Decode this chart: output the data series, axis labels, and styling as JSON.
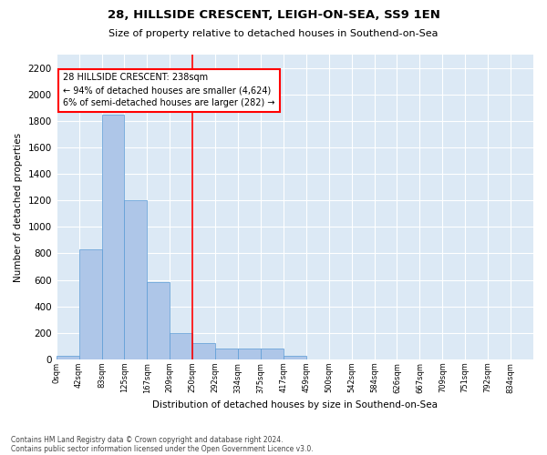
{
  "title": "28, HILLSIDE CRESCENT, LEIGH-ON-SEA, SS9 1EN",
  "subtitle": "Size of property relative to detached houses in Southend-on-Sea",
  "xlabel": "Distribution of detached houses by size in Southend-on-Sea",
  "ylabel": "Number of detached properties",
  "bin_labels": [
    "0sqm",
    "42sqm",
    "83sqm",
    "125sqm",
    "167sqm",
    "209sqm",
    "250sqm",
    "292sqm",
    "334sqm",
    "375sqm",
    "417sqm",
    "459sqm",
    "500sqm",
    "542sqm",
    "584sqm",
    "626sqm",
    "667sqm",
    "709sqm",
    "751sqm",
    "792sqm",
    "834sqm"
  ],
  "bar_values": [
    30,
    830,
    1850,
    1200,
    580,
    200,
    120,
    80,
    80,
    80,
    30,
    0,
    0,
    0,
    0,
    0,
    0,
    0,
    0,
    0,
    0
  ],
  "bar_color": "#aec6e8",
  "bar_edge_color": "#5a9bd5",
  "red_line_bin": 6,
  "annotation_text": "28 HILLSIDE CRESCENT: 238sqm\n← 94% of detached houses are smaller (4,624)\n6% of semi-detached houses are larger (282) →",
  "ylim": [
    0,
    2300
  ],
  "yticks": [
    0,
    200,
    400,
    600,
    800,
    1000,
    1200,
    1400,
    1600,
    1800,
    2000,
    2200
  ],
  "background_color": "#dce9f5",
  "footer_line1": "Contains HM Land Registry data © Crown copyright and database right 2024.",
  "footer_line2": "Contains public sector information licensed under the Open Government Licence v3.0."
}
